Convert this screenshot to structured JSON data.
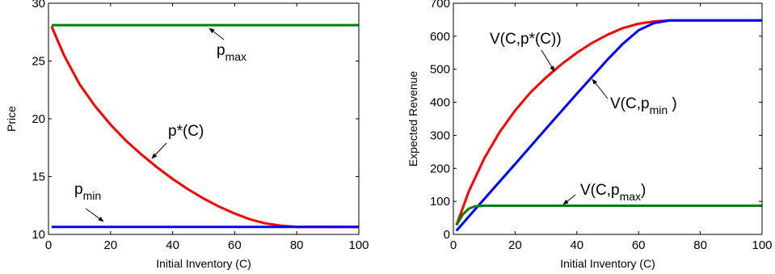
{
  "chart_data": [
    {
      "type": "line",
      "xlabel": "Initial Inventory (C)",
      "ylabel": "Price",
      "xlim": [
        0,
        100
      ],
      "ylim": [
        10,
        30
      ],
      "xticks": [
        "0",
        "20",
        "40",
        "60",
        "80",
        "100"
      ],
      "yticks": [
        "10",
        "15",
        "20",
        "25",
        "30"
      ],
      "grid": false,
      "series": [
        {
          "name": "p*(C)",
          "color": "#ff0000",
          "x": [
            1,
            5,
            10,
            15,
            20,
            25,
            30,
            35,
            40,
            45,
            50,
            55,
            60,
            65,
            70,
            75,
            80,
            85,
            90,
            95,
            100
          ],
          "y": [
            28.0,
            25.5,
            23.0,
            21.1,
            19.5,
            18.1,
            16.9,
            15.8,
            14.8,
            13.9,
            13.1,
            12.4,
            11.8,
            11.3,
            10.95,
            10.75,
            10.65,
            10.65,
            10.65,
            10.65,
            10.65
          ]
        },
        {
          "name": "p_max",
          "color": "#007f00",
          "x": [
            1,
            100
          ],
          "y": [
            28.1,
            28.1
          ]
        },
        {
          "name": "p_min",
          "color": "#0000ff",
          "x": [
            1,
            100
          ],
          "y": [
            10.65,
            10.65
          ]
        }
      ],
      "annotations": [
        {
          "text": "p",
          "sub": "max",
          "series": "p_max"
        },
        {
          "text": "p*(C)",
          "sub": "",
          "series": "p*(C)"
        },
        {
          "text": "p",
          "sub": "min",
          "series": "p_min"
        }
      ]
    },
    {
      "type": "line",
      "xlabel": "Initial Inventory (C)",
      "ylabel": "Expected Revenue",
      "xlim": [
        0,
        100
      ],
      "ylim": [
        0,
        700
      ],
      "xticks": [
        "0",
        "20",
        "40",
        "60",
        "80",
        "100"
      ],
      "yticks": [
        "0",
        "100",
        "200",
        "300",
        "400",
        "500",
        "600",
        "700"
      ],
      "grid": false,
      "series": [
        {
          "name": "V(C,p*(C))",
          "color": "#ff0000",
          "x": [
            1,
            5,
            10,
            15,
            20,
            25,
            30,
            35,
            40,
            45,
            50,
            55,
            60,
            65,
            70,
            75,
            80,
            85,
            90,
            95,
            100
          ],
          "y": [
            28,
            130,
            230,
            310,
            375,
            430,
            475,
            515,
            550,
            580,
            605,
            625,
            638,
            645,
            648,
            648,
            648,
            648,
            648,
            648,
            648
          ]
        },
        {
          "name": "V(C,p_min)",
          "color": "#0000ff",
          "x": [
            1,
            5,
            10,
            20,
            30,
            40,
            50,
            55,
            60,
            65,
            70,
            75,
            80,
            85,
            90,
            95,
            100
          ],
          "y": [
            11,
            54,
            107,
            213,
            320,
            426,
            530,
            578,
            618,
            640,
            648,
            648,
            648,
            648,
            648,
            648,
            648
          ]
        },
        {
          "name": "V(C,p_max)",
          "color": "#007f00",
          "x": [
            1,
            3,
            5,
            7,
            10,
            20,
            40,
            60,
            80,
            100
          ],
          "y": [
            28,
            60,
            78,
            85,
            87,
            87,
            87,
            87,
            87,
            87
          ]
        }
      ],
      "annotations": [
        {
          "text": "V(C,p*(C))",
          "sub": "",
          "tail": "",
          "series": "V(C,p*(C))"
        },
        {
          "text": "V(C,p",
          "sub": "min",
          "tail": " )",
          "series": "V(C,p_min)"
        },
        {
          "text": "V(C,p",
          "sub": "max",
          "tail": ")",
          "series": "V(C,p_max)"
        }
      ]
    }
  ]
}
